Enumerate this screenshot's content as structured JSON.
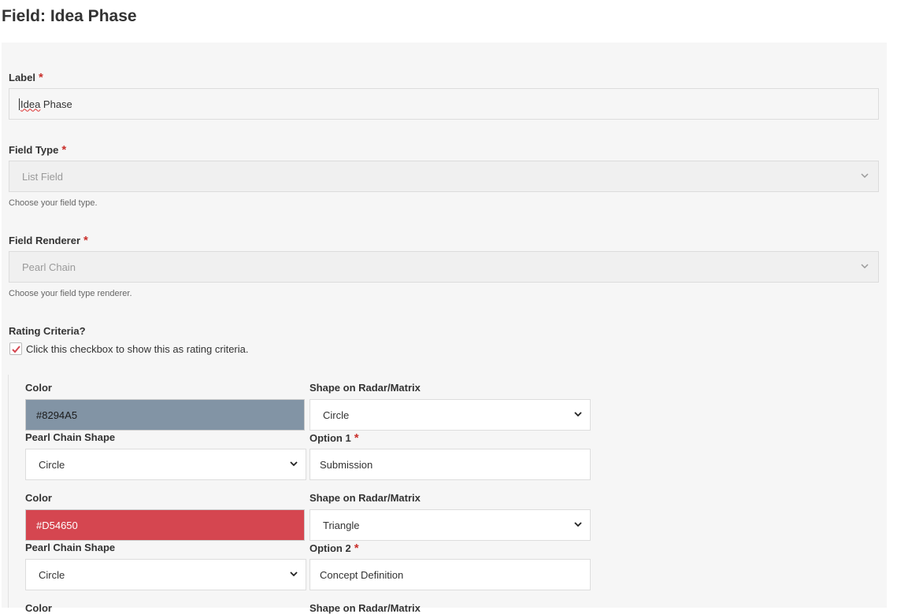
{
  "page": {
    "title": "Field: Idea Phase"
  },
  "label_field": {
    "label": "Label",
    "required": "*",
    "value_first": "Idea",
    "value_rest": " Phase"
  },
  "field_type": {
    "label": "Field Type",
    "required": "*",
    "value": "List Field",
    "help": "Choose your field type."
  },
  "field_renderer": {
    "label": "Field Renderer",
    "required": "*",
    "value": "Pearl Chain",
    "help": "Choose your field type renderer."
  },
  "rating": {
    "label": "Rating Criteria?",
    "checkbox_label": "Click this checkbox to show this as rating criteria.",
    "checked": true
  },
  "options": [
    {
      "color_label": "Color",
      "color_value": "#8294A5",
      "color_hex": "#8294A5",
      "text_color": "#1a1a1a",
      "shape_label": "Shape on Radar/Matrix",
      "shape_value": "Circle",
      "pearl_label": "Pearl Chain Shape",
      "pearl_value": "Circle",
      "option_label": "Option 1",
      "required": "*",
      "option_value": "Submission"
    },
    {
      "color_label": "Color",
      "color_value": "#D54650",
      "color_hex": "#D54650",
      "text_color": "#ffffff",
      "shape_label": "Shape on Radar/Matrix",
      "shape_value": "Triangle",
      "pearl_label": "Pearl Chain Shape",
      "pearl_value": "Circle",
      "option_label": "Option 2",
      "required": "*",
      "option_value": "Concept Definition"
    },
    {
      "color_label": "Color",
      "shape_label": "Shape on Radar/Matrix"
    }
  ]
}
